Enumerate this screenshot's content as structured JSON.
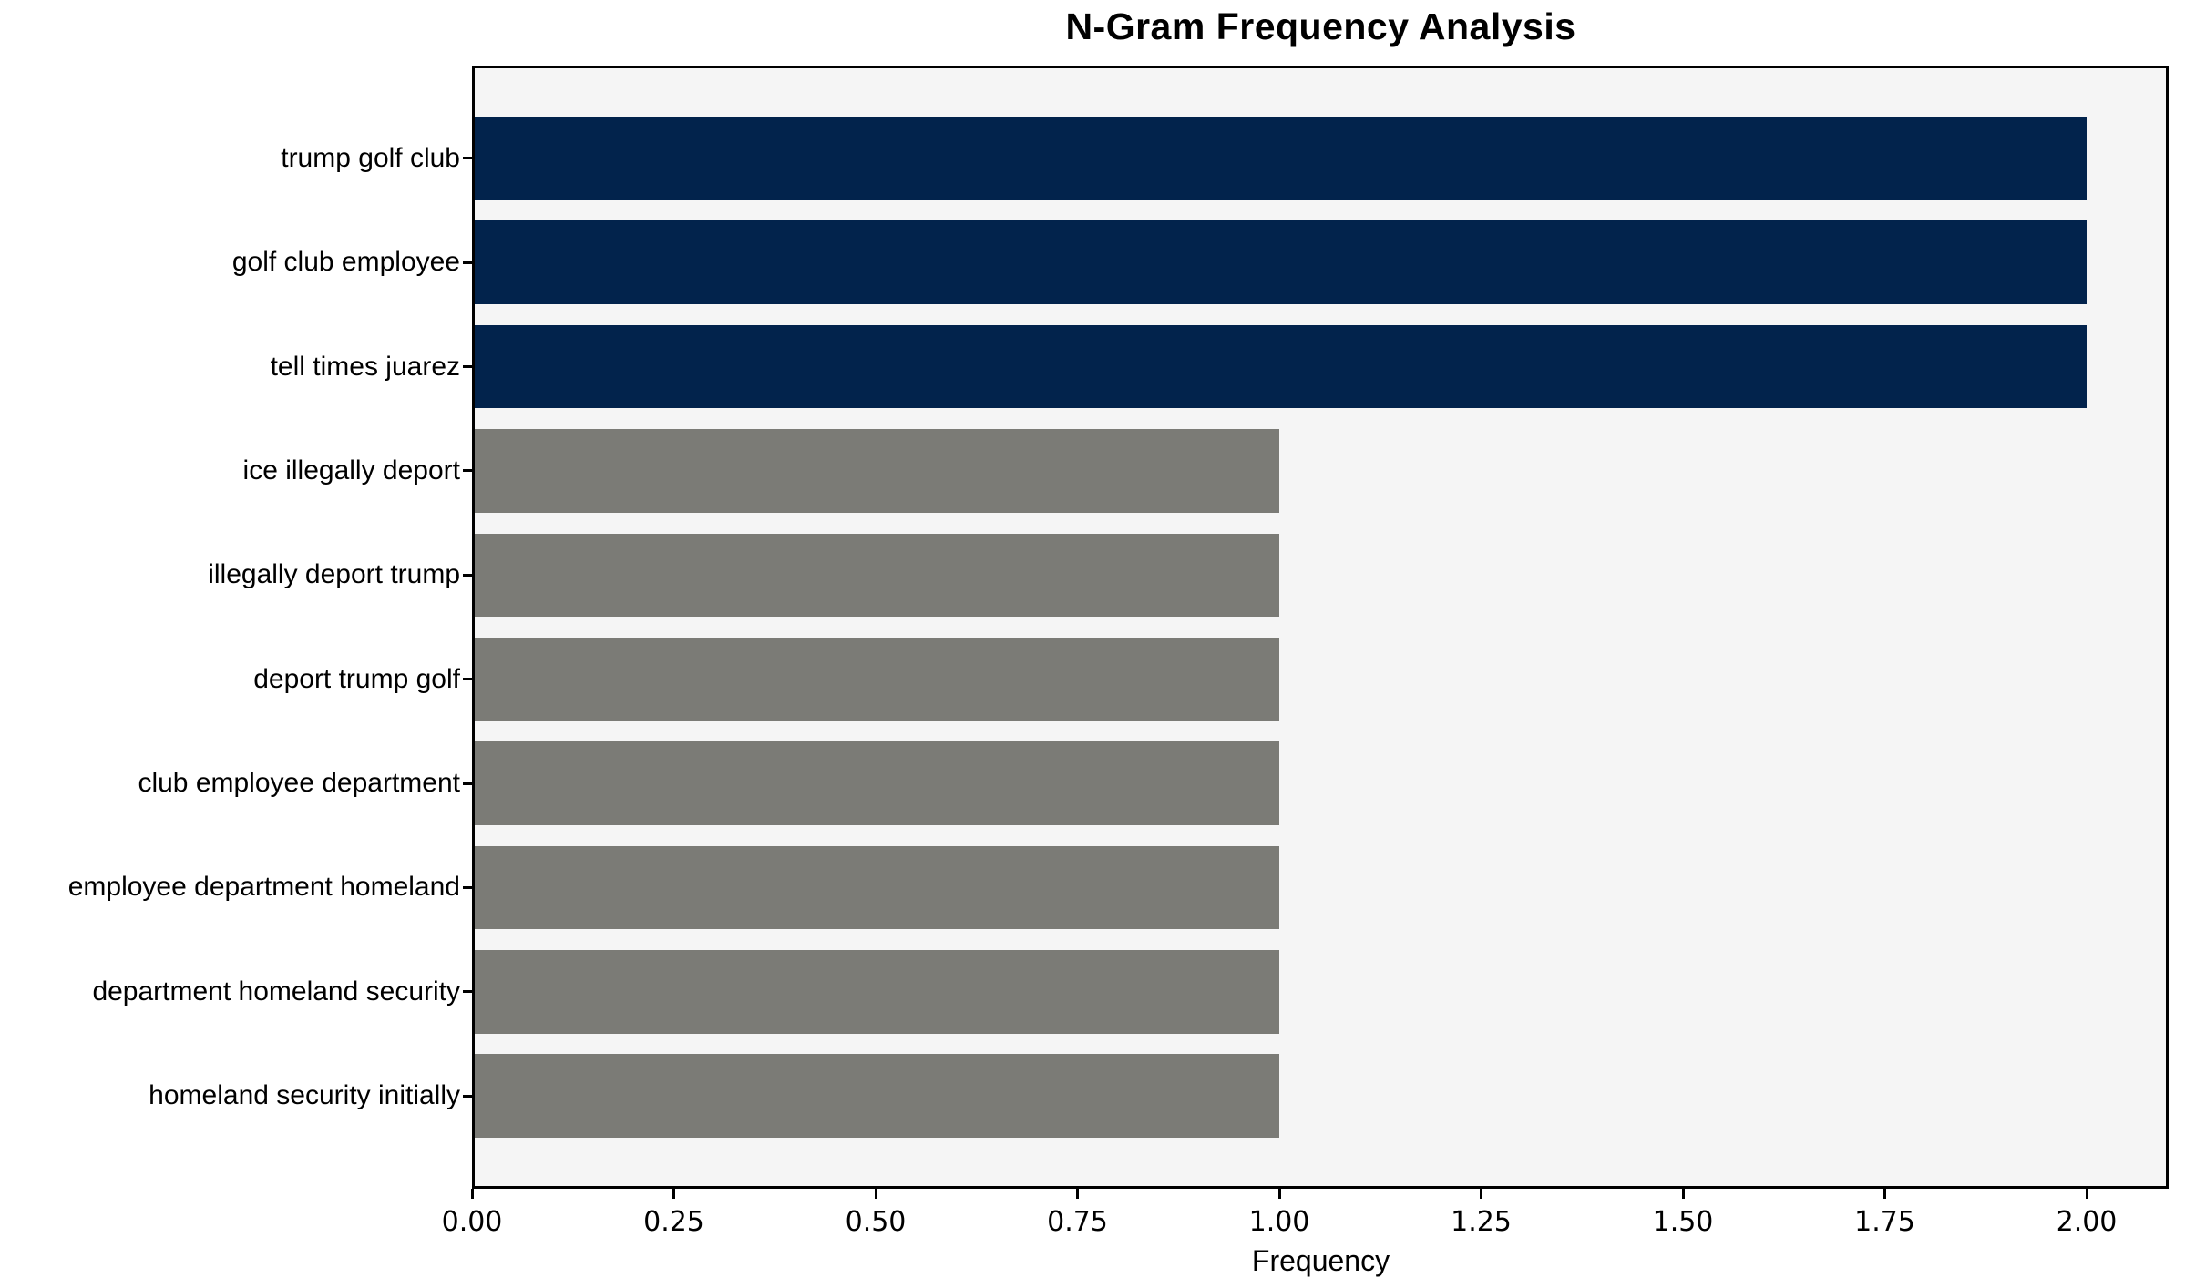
{
  "figure": {
    "background": "#ffffff",
    "plot_background": "#f5f5f5",
    "border_color": "#000000"
  },
  "chart_data": {
    "type": "bar",
    "orientation": "horizontal",
    "title": "N-Gram Frequency Analysis",
    "xlabel": "Frequency",
    "ylabel": "",
    "categories": [
      "trump golf club",
      "golf club employee",
      "tell times juarez",
      "ice illegally deport",
      "illegally deport trump",
      "deport trump golf",
      "club employee department",
      "employee department homeland",
      "department homeland security",
      "homeland security initially"
    ],
    "values": [
      2,
      2,
      2,
      1,
      1,
      1,
      1,
      1,
      1,
      1
    ],
    "bar_colors": [
      "#02234c",
      "#02234c",
      "#02234c",
      "#7b7b76",
      "#7b7b76",
      "#7b7b76",
      "#7b7b76",
      "#7b7b76",
      "#7b7b76",
      "#7b7b76"
    ],
    "colors": {
      "highlight": "#02234c",
      "default": "#7b7b76"
    },
    "xlim": [
      0,
      2.1
    ],
    "x_ticks": [
      0,
      0.25,
      0.5,
      0.75,
      1.0,
      1.25,
      1.5,
      1.75,
      2.0
    ],
    "x_tick_labels": [
      "0.00",
      "0.25",
      "0.50",
      "0.75",
      "1.00",
      "1.25",
      "1.50",
      "1.75",
      "2.00"
    ],
    "grid": false,
    "legend": null
  }
}
